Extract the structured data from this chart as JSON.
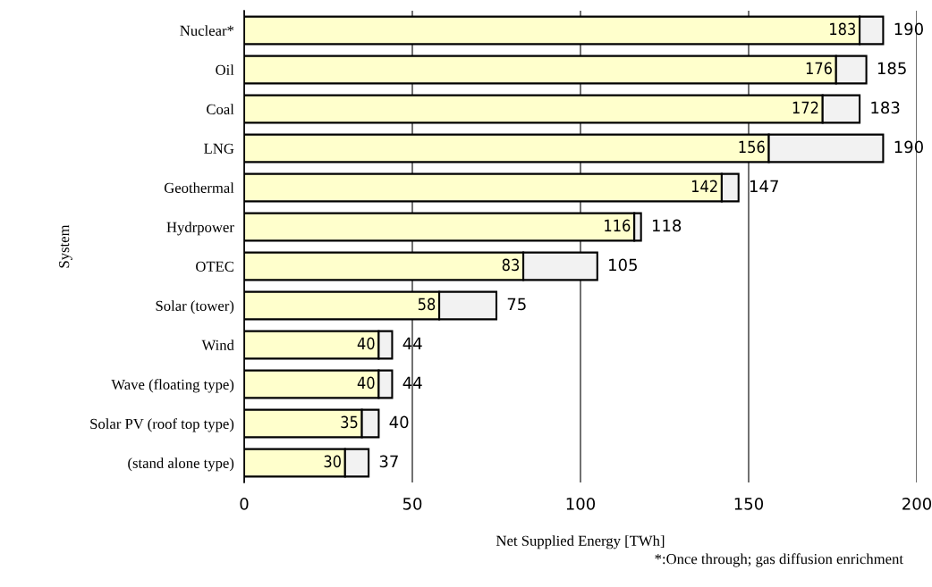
{
  "chart_data": {
    "type": "bar",
    "orientation": "horizontal",
    "stacked": true,
    "categories": [
      "Nuclear*",
      "Oil",
      "Coal",
      "LNG",
      "Geothermal",
      "Hydrpower",
      "OTEC",
      "Solar (tower)",
      "Wind",
      "Wave (floating type)",
      "Solar PV (roof top type)",
      "(stand alone type)"
    ],
    "series": [
      {
        "color": "#ffffcc",
        "values": [
          183,
          176,
          172,
          156,
          142,
          116,
          83,
          58,
          40,
          40,
          35,
          30
        ],
        "value_labels": [
          "183",
          "176",
          "172",
          "156",
          "142",
          "116",
          "83",
          "58",
          "40",
          "40",
          "35",
          "30"
        ]
      },
      {
        "color": "#f2f2f2",
        "values": [
          7,
          9,
          11,
          34,
          5,
          2,
          22,
          17,
          4,
          4,
          5,
          7
        ]
      }
    ],
    "totals": [
      "190",
      "185",
      "183",
      "190",
      "147",
      "118",
      "105",
      "75",
      "44",
      "44",
      "40",
      "37"
    ],
    "xlim": [
      0,
      200
    ],
    "xticks": [
      0,
      50,
      100,
      150,
      200
    ],
    "grid": "x",
    "legend": false,
    "xlabel": "Net Supplied Energy [TWh]",
    "ylabel": "System",
    "annotations": [
      "*:Once through; gas diffusion enrichment"
    ]
  }
}
